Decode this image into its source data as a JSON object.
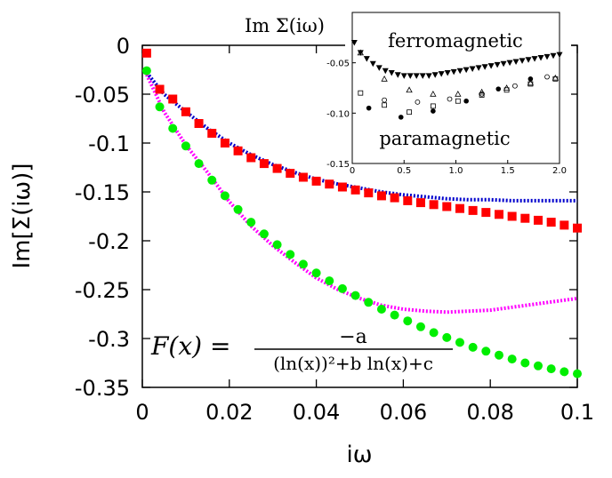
{
  "chart_data": [
    {
      "type": "scatter",
      "xlabel": "iω",
      "ylabel": "Im[Σ(iω)]",
      "xlim": [
        0,
        0.1
      ],
      "ylim": [
        -0.35,
        0
      ],
      "xticks": [
        "0",
        "0.02",
        "0.04",
        "0.06",
        "0.08",
        "0.1"
      ],
      "yticks": [
        "0",
        "-0.05",
        "-0.1",
        "-0.15",
        "-0.2",
        "-0.25",
        "-0.3",
        "-0.35"
      ],
      "grid": false,
      "annotation": {
        "lhs": "F(x) =",
        "numerator": "−a",
        "denominator": "(ln(x))²+b ln(x)+c"
      },
      "series": [
        {
          "marker": "square",
          "color": "#ff0000",
          "x": [
            0.001,
            0.004,
            0.007,
            0.01,
            0.013,
            0.016,
            0.019,
            0.022,
            0.025,
            0.028,
            0.031,
            0.034,
            0.037,
            0.04,
            0.043,
            0.046,
            0.049,
            0.052,
            0.055,
            0.058,
            0.061,
            0.064,
            0.067,
            0.07,
            0.073,
            0.076,
            0.079,
            0.082,
            0.085,
            0.088,
            0.091,
            0.094,
            0.097,
            0.1
          ],
          "y": [
            -0.008,
            -0.045,
            -0.055,
            -0.068,
            -0.08,
            -0.09,
            -0.1,
            -0.108,
            -0.115,
            -0.121,
            -0.126,
            -0.131,
            -0.135,
            -0.139,
            -0.142,
            -0.145,
            -0.148,
            -0.151,
            -0.154,
            -0.156,
            -0.159,
            -0.161,
            -0.163,
            -0.165,
            -0.167,
            -0.169,
            -0.171,
            -0.173,
            -0.175,
            -0.177,
            -0.179,
            -0.181,
            -0.184,
            -0.187
          ]
        },
        {
          "marker": "circle",
          "color": "#00ee00",
          "x": [
            0.001,
            0.004,
            0.007,
            0.01,
            0.013,
            0.016,
            0.019,
            0.022,
            0.025,
            0.028,
            0.031,
            0.034,
            0.037,
            0.04,
            0.043,
            0.046,
            0.049,
            0.052,
            0.055,
            0.058,
            0.061,
            0.064,
            0.067,
            0.07,
            0.073,
            0.076,
            0.079,
            0.082,
            0.085,
            0.088,
            0.091,
            0.094,
            0.097,
            0.1
          ],
          "y": [
            -0.026,
            -0.063,
            -0.085,
            -0.103,
            -0.121,
            -0.138,
            -0.154,
            -0.168,
            -0.181,
            -0.193,
            -0.204,
            -0.214,
            -0.224,
            -0.233,
            -0.241,
            -0.249,
            -0.256,
            -0.263,
            -0.27,
            -0.276,
            -0.282,
            -0.288,
            -0.294,
            -0.299,
            -0.304,
            -0.309,
            -0.313,
            -0.317,
            -0.321,
            -0.325,
            -0.328,
            -0.331,
            -0.334,
            -0.336
          ]
        },
        {
          "marker": "dotted-line",
          "color": "#0000cc",
          "x": [
            0.001,
            0.005,
            0.01,
            0.015,
            0.02,
            0.025,
            0.03,
            0.035,
            0.04,
            0.045,
            0.05,
            0.055,
            0.06,
            0.065,
            0.07,
            0.075,
            0.08,
            0.085,
            0.09,
            0.095,
            0.1
          ],
          "y": [
            -0.028,
            -0.05,
            -0.068,
            -0.085,
            -0.1,
            -0.112,
            -0.122,
            -0.13,
            -0.137,
            -0.142,
            -0.146,
            -0.15,
            -0.153,
            -0.155,
            -0.157,
            -0.158,
            -0.158,
            -0.159,
            -0.159,
            -0.159,
            -0.159
          ]
        },
        {
          "marker": "dotted-line",
          "color": "#ff00ff",
          "x": [
            0.001,
            0.005,
            0.01,
            0.015,
            0.02,
            0.025,
            0.03,
            0.035,
            0.04,
            0.045,
            0.05,
            0.055,
            0.06,
            0.065,
            0.07,
            0.075,
            0.08,
            0.085,
            0.09,
            0.095,
            0.1
          ],
          "y": [
            -0.03,
            -0.068,
            -0.102,
            -0.13,
            -0.16,
            -0.185,
            -0.205,
            -0.222,
            -0.238,
            -0.25,
            -0.259,
            -0.266,
            -0.27,
            -0.272,
            -0.273,
            -0.272,
            -0.271,
            -0.268,
            -0.265,
            -0.262,
            -0.259
          ]
        }
      ]
    },
    {
      "type": "scatter",
      "title": "Im Σ(iω)",
      "xlim": [
        0,
        2.0
      ],
      "ylim": [
        -0.15,
        0
      ],
      "xticks": [
        "0",
        "0.5",
        "1.0",
        "1.5",
        "2.0"
      ],
      "yticks": [
        "-0.05",
        "-0.10",
        "-0.15"
      ],
      "annotations": [
        "ferromagnetic",
        "paramagnetic"
      ],
      "series": [
        {
          "marker": "triangle-down-filled",
          "x": [
            0.02,
            0.08,
            0.14,
            0.2,
            0.26,
            0.32,
            0.38,
            0.44,
            0.5,
            0.56,
            0.62,
            0.68,
            0.74,
            0.8,
            0.86,
            0.92,
            0.98,
            1.04,
            1.1,
            1.16,
            1.22,
            1.28,
            1.34,
            1.4,
            1.46,
            1.52,
            1.58,
            1.64,
            1.7,
            1.76,
            1.82,
            1.88,
            1.94,
            2.0
          ],
          "y": [
            -0.03,
            -0.04,
            -0.046,
            -0.051,
            -0.055,
            -0.058,
            -0.06,
            -0.062,
            -0.063,
            -0.063,
            -0.063,
            -0.063,
            -0.063,
            -0.062,
            -0.061,
            -0.06,
            -0.059,
            -0.058,
            -0.057,
            -0.056,
            -0.055,
            -0.054,
            -0.053,
            -0.052,
            -0.051,
            -0.05,
            -0.049,
            -0.048,
            -0.047,
            -0.046,
            -0.045,
            -0.044,
            -0.043,
            -0.042
          ]
        },
        {
          "marker": "triangle-up-open",
          "x": [
            0.08,
            0.31,
            0.55,
            0.78,
            1.02,
            1.25,
            1.49,
            1.72,
            1.96
          ],
          "y": [
            -0.04,
            -0.066,
            -0.077,
            -0.081,
            -0.081,
            -0.079,
            -0.075,
            -0.07,
            -0.065
          ]
        },
        {
          "marker": "square-open",
          "x": [
            0.08,
            0.31,
            0.55,
            0.78,
            1.02,
            1.25,
            1.49,
            1.72,
            1.96
          ],
          "y": [
            -0.08,
            -0.092,
            -0.099,
            -0.093,
            -0.088,
            -0.082,
            -0.077,
            -0.071,
            -0.066
          ]
        },
        {
          "marker": "circle-filled",
          "x": [
            0.16,
            0.47,
            0.78,
            1.1,
            1.41,
            1.72
          ],
          "y": [
            -0.095,
            -0.104,
            -0.098,
            -0.088,
            -0.076,
            -0.066
          ]
        },
        {
          "marker": "circle-open",
          "x": [
            0.31,
            0.63,
            0.94,
            1.25,
            1.57,
            1.88
          ],
          "y": [
            -0.087,
            -0.089,
            -0.086,
            -0.081,
            -0.073,
            -0.064
          ]
        }
      ]
    }
  ]
}
